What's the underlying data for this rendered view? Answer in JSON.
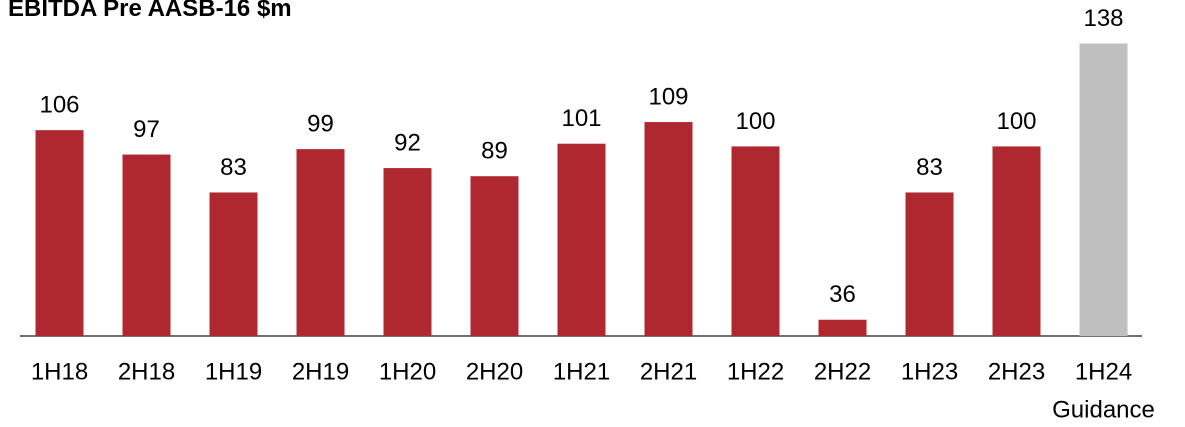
{
  "chart_data": {
    "type": "bar",
    "title": "EBITDA Pre AASB-16 $m",
    "categories": [
      "1H18",
      "2H18",
      "1H19",
      "2H19",
      "1H20",
      "2H20",
      "1H21",
      "2H21",
      "1H22",
      "2H22",
      "1H23",
      "2H23",
      "1H24"
    ],
    "values": [
      106,
      97,
      83,
      99,
      92,
      89,
      101,
      109,
      100,
      36,
      83,
      100,
      138
    ],
    "colors": [
      "#b0282f",
      "#b0282f",
      "#b0282f",
      "#b0282f",
      "#b0282f",
      "#b0282f",
      "#b0282f",
      "#b0282f",
      "#b0282f",
      "#b0282f",
      "#b0282f",
      "#b0282f",
      "#bfbfbf"
    ],
    "annotation": "Guidance",
    "ylim": [
      30,
      150
    ]
  }
}
